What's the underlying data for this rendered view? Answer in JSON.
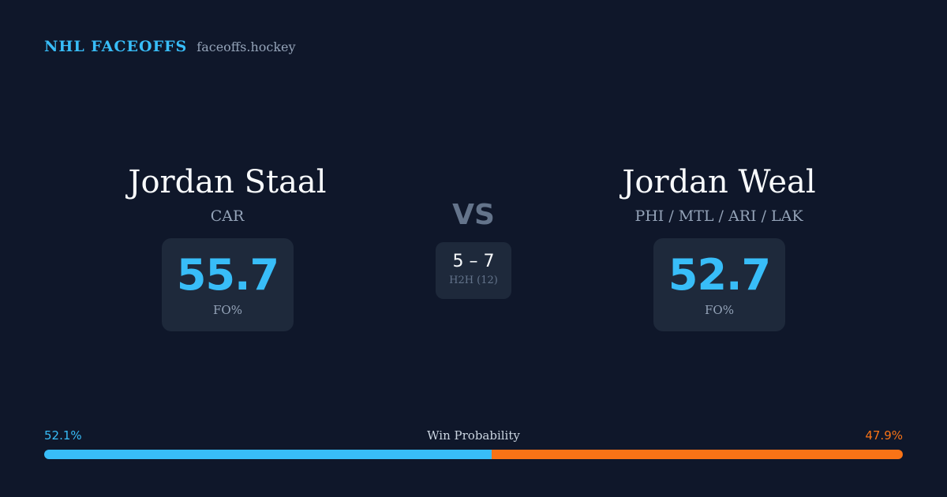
{
  "brand": {
    "title": "NHL FACEOFFS",
    "domain": "faceoffs.hockey"
  },
  "player_left": {
    "name": "Jordan Staal",
    "team": "CAR",
    "fo_value": "55.7",
    "fo_label": "FO%"
  },
  "player_right": {
    "name": "Jordan Weal",
    "team": "PHI / MTL / ARI / LAK",
    "fo_value": "52.7",
    "fo_label": "FO%"
  },
  "vs": "VS",
  "h2h": {
    "score": "5 – 7",
    "label": "H2H (12)"
  },
  "win_probability": {
    "title": "Win Probability",
    "left_percent_text": "52.1%",
    "right_percent_text": "47.9%",
    "left_fraction": 0.521,
    "right_fraction": 0.479,
    "left_color": "#38bdf8",
    "right_color": "#f97316"
  }
}
